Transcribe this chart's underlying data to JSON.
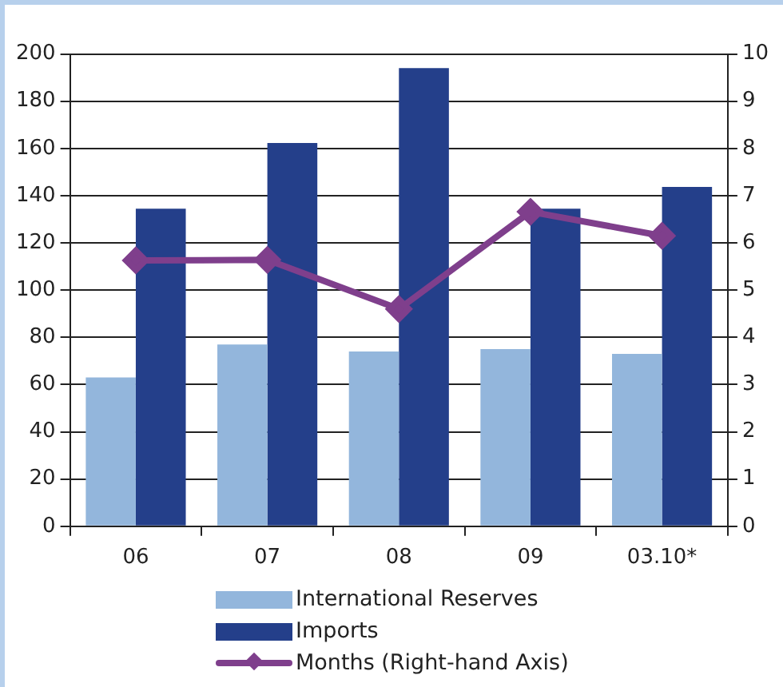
{
  "chart_data": {
    "type": "bar",
    "categories": [
      "06",
      "07",
      "08",
      "09",
      "03.10*"
    ],
    "series": [
      {
        "name": "International Reserves",
        "color": "#93b6dc",
        "values": [
          63,
          77,
          74,
          75,
          73
        ]
      },
      {
        "name": "Imports",
        "color": "#243f8a",
        "values": [
          134.5,
          162.3,
          194,
          134.5,
          143.7
        ]
      },
      {
        "name": "Months (Right-hand Axis)",
        "type": "line",
        "axis": "y2",
        "color": "#7f3f8c",
        "marker": "diamond",
        "values": [
          5.63,
          5.64,
          4.6,
          6.66,
          6.15
        ]
      }
    ],
    "ylim": [
      0,
      200
    ],
    "yticks": [
      0,
      20,
      40,
      60,
      80,
      100,
      120,
      140,
      160,
      180,
      200
    ],
    "y2lim": [
      0,
      10
    ],
    "y2ticks": [
      0,
      1,
      2,
      3,
      4,
      5,
      6,
      7,
      8,
      9,
      10
    ],
    "grid": "y",
    "legend": "bottom"
  }
}
